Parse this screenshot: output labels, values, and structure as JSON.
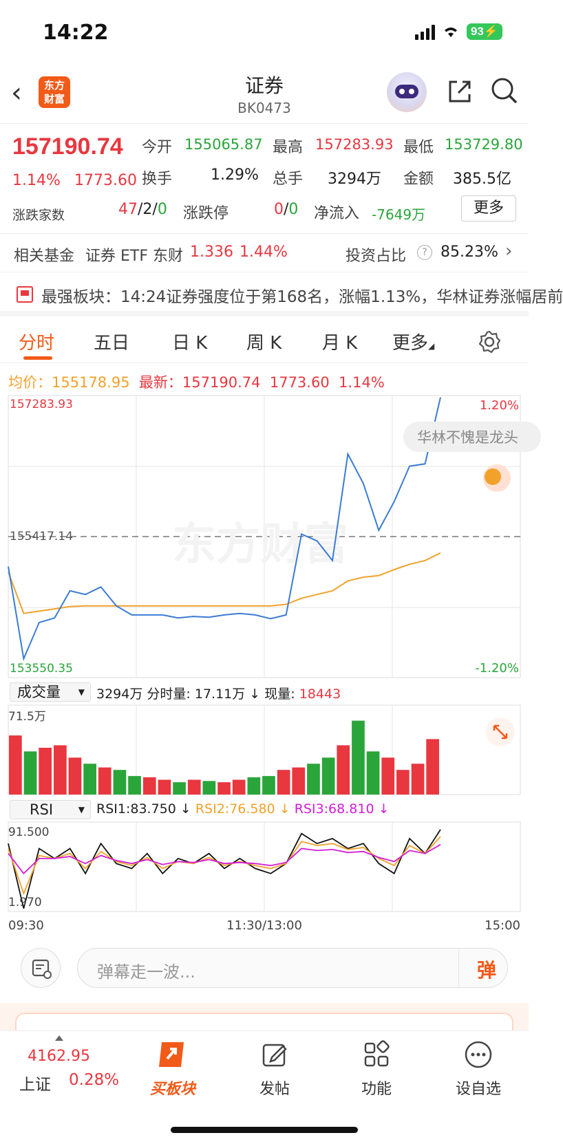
{
  "status": {
    "time": "14:22",
    "battery": "93"
  },
  "nav": {
    "title": "证券",
    "code": "BK0473",
    "logo_text": "东方\n财富",
    "icons": [
      "back-icon",
      "logo",
      "robot-avatar",
      "share-icon",
      "search-icon"
    ]
  },
  "quote": {
    "price": "157190.74",
    "pct": "1.14%",
    "change": "1773.60",
    "open_label": "今开",
    "open": "155065.87",
    "high_label": "最高",
    "high": "157283.93",
    "low_label": "最低",
    "low": "153729.80",
    "turnover_label": "换手",
    "turnover": "1.29%",
    "volume_label": "总手",
    "volume": "3294万",
    "amount_label": "金额",
    "amount": "385.5亿",
    "count_label": "涨跌家数",
    "up": "47",
    "sep1": "/",
    "flat": "2",
    "sep2": "/",
    "down": "0",
    "limit_label": "涨跌停",
    "limit_up": "0",
    "sep3": "/",
    "limit_down": "0",
    "inflow_label": "净流入",
    "inflow": "-7649万",
    "more": "更多"
  },
  "fund": {
    "label": "相关基金",
    "name": "证券 ETF 东财",
    "value": "1.336",
    "pct": "1.44%",
    "ratio_label": "投资占比",
    "ratio": "85.23%"
  },
  "banner": {
    "text": "最强板块：14:24证券强度位于第168名，涨幅1.13%，华林证券涨幅居前"
  },
  "tabs": [
    "分时",
    "五日",
    "日 K",
    "周 K",
    "月 K",
    "更多"
  ],
  "avg": {
    "avg_label": "均价：",
    "avg_value": "155178.95",
    "latest_label": "最新：",
    "latest_value": "157190.74",
    "change": "1773.60",
    "pct": "1.14%"
  },
  "chart_labels": {
    "y_top": "157283.93",
    "y_mid": "155417.14",
    "y_bottom": "153550.35",
    "pct_top": "1.20%",
    "pct_bottom": "-1.20%",
    "danmu": "华林不愧是龙头",
    "watermark": "东方财富",
    "vol_max": "71.5万",
    "rsi_top": "91.500",
    "rsi_bottom": "1.970",
    "x_start": "09:30",
    "x_mid": "11:30/13:00",
    "x_end": "15:00"
  },
  "volume_head": {
    "dd": "成交量",
    "total": "3294万",
    "slot_label": "分时量:",
    "slot": "17.11万",
    "now_label": "现量:",
    "now": "18443"
  },
  "rsi_head": {
    "dd": "RSI",
    "rsi1": "RSI1:83.750",
    "rsi2": "RSI2:76.580",
    "rsi3": "RSI3:68.810"
  },
  "input": {
    "placeholder": "弹幕走一波...",
    "dan": "弹"
  },
  "tabbar": {
    "idx_value": "4162.95",
    "idx_name": "上证",
    "idx_pct": "0.28%",
    "items": [
      "买板块",
      "发帖",
      "功能",
      "设自选"
    ]
  },
  "colors": {
    "red": "#e8373f",
    "green": "#2aa53a",
    "orange": "#f25a18",
    "price_line": "#3a7bd5",
    "avg_line": "#f2a12a",
    "rsi3": "#d41bd6"
  },
  "chart_data": [
    {
      "type": "line",
      "title": "",
      "xlabel": "",
      "ylabel": "",
      "x_ticks": [
        "09:30",
        "11:30/13:00",
        "15:00"
      ],
      "ylim": [
        153550.35,
        157283.93
      ],
      "reference": 155417.14,
      "series": [
        {
          "name": "最新",
          "values": [
            155020,
            153800,
            154280,
            154340,
            154700,
            154650,
            154750,
            154500,
            154380,
            154380,
            154380,
            154340,
            154360,
            154350,
            154380,
            154400,
            154380,
            154330,
            154380,
            155450,
            155360,
            155100,
            156510,
            156120,
            155500,
            155880,
            156350,
            156380,
            157260
          ]
        },
        {
          "name": "均价",
          "values": [
            154950,
            154400,
            154430,
            154460,
            154490,
            154500,
            154500,
            154500,
            154500,
            154500,
            154500,
            154500,
            154500,
            154500,
            154500,
            154500,
            154500,
            154500,
            154520,
            154600,
            154650,
            154700,
            154830,
            154880,
            154900,
            154980,
            155050,
            155100,
            155200
          ]
        }
      ]
    },
    {
      "type": "bar",
      "title": "",
      "ylim": [
        0,
        71.5
      ],
      "values": [
        48,
        35,
        38,
        40,
        30,
        25,
        22,
        20,
        15,
        14,
        12,
        10,
        12,
        11,
        10,
        12,
        14,
        15,
        20,
        22,
        25,
        30,
        40,
        60,
        35,
        30,
        20,
        25,
        45
      ]
    },
    {
      "type": "line",
      "title": "",
      "ylim": [
        1.97,
        91.5
      ],
      "series": [
        {
          "name": "RSI1",
          "values": [
            70,
            5,
            65,
            55,
            65,
            40,
            70,
            50,
            45,
            60,
            40,
            55,
            50,
            60,
            45,
            55,
            45,
            40,
            50,
            80,
            70,
            75,
            65,
            70,
            50,
            40,
            75,
            60,
            84
          ]
        },
        {
          "name": "RSI2",
          "values": [
            65,
            20,
            58,
            55,
            60,
            45,
            62,
            52,
            48,
            56,
            45,
            52,
            50,
            56,
            48,
            52,
            48,
            45,
            50,
            72,
            68,
            70,
            64,
            66,
            55,
            48,
            68,
            60,
            77
          ]
        },
        {
          "name": "RSI3",
          "values": [
            60,
            40,
            55,
            55,
            57,
            50,
            58,
            53,
            50,
            54,
            49,
            52,
            51,
            54,
            50,
            51,
            50,
            48,
            51,
            65,
            63,
            64,
            61,
            62,
            56,
            52,
            63,
            60,
            69
          ]
        }
      ]
    }
  ]
}
